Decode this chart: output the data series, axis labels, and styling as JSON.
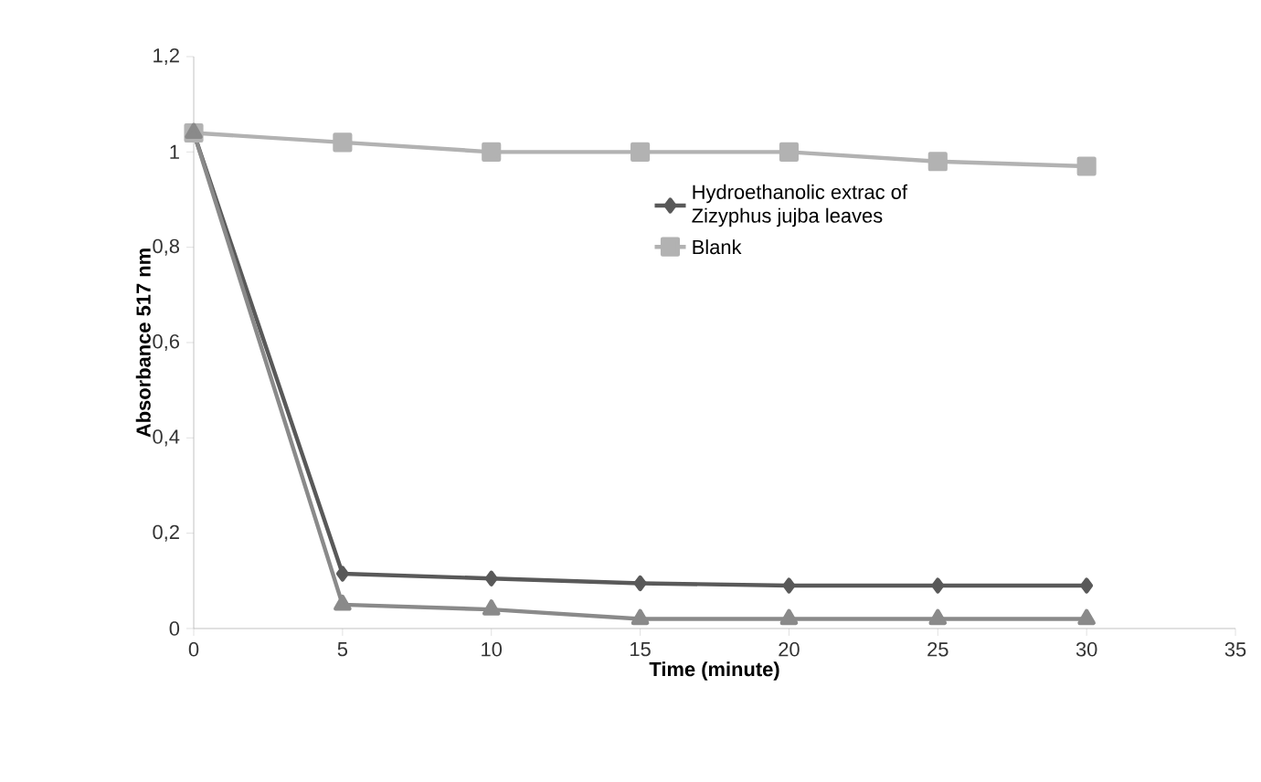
{
  "chart_data": {
    "type": "line",
    "xlabel": "Time (minute)",
    "ylabel": "Absorbance 517 nm",
    "x": [
      0,
      5,
      10,
      15,
      20,
      25,
      30
    ],
    "series": [
      {
        "name": "Hydroethanolic extrac of Zizyphus jujba leaves",
        "color": "#595959",
        "marker": "diamond",
        "values": [
          1.04,
          0.115,
          0.105,
          0.095,
          0.09,
          0.09,
          0.09
        ]
      },
      {
        "name": "Blank",
        "color": "#b2b2b2",
        "marker": "square",
        "values": [
          1.04,
          1.02,
          1.0,
          1.0,
          1.0,
          0.98,
          0.97
        ]
      },
      {
        "color": "#8a8a8a",
        "marker": "triangle",
        "values": [
          1.04,
          0.05,
          0.04,
          0.02,
          0.02,
          0.02,
          0.02
        ]
      }
    ],
    "xlim": [
      0,
      35
    ],
    "xticks": [
      0,
      5,
      10,
      15,
      20,
      25,
      30,
      35
    ],
    "ylim": [
      0,
      1.2
    ],
    "yticks": [
      0,
      {
        "value": 0.2,
        "label": "0,2"
      },
      {
        "value": 0.4,
        "label": "0,4"
      },
      {
        "value": 0.6,
        "label": "0,6"
      },
      {
        "value": 0.8,
        "label": "0,8"
      },
      1,
      {
        "value": 1.2,
        "label": "1,2"
      }
    ],
    "legend": "top right",
    "grid": false,
    "line_style": "solid"
  }
}
